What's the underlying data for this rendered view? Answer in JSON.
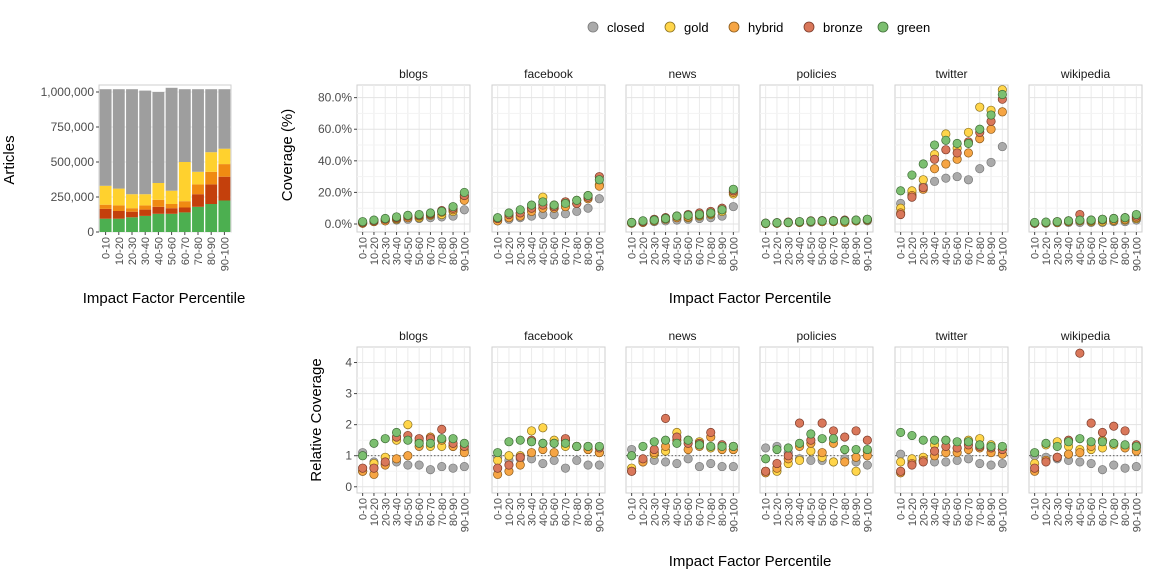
{
  "colors": {
    "closed": "#aaaaaa",
    "gold": "#ffd54a",
    "hybrid": "#f6a544",
    "bronze": "#d9775a",
    "green": "#7cbf70",
    "bar_closed": "#9e9e9e",
    "bar_gold": "#ffd12e",
    "bar_hybrid": "#f08a12",
    "bar_bronze": "#c4400c",
    "bar_green": "#4caf50"
  },
  "chart_data": [
    {
      "type": "bar",
      "stacked": true,
      "ylabel": "Articles",
      "xlabel": "Impact Factor Percentile",
      "ylim": [
        0,
        1050000
      ],
      "yticks": [
        "0",
        "250,000",
        "500,000",
        "750,000",
        "1,000,000"
      ],
      "categories": [
        "0-10",
        "10-20",
        "20-30",
        "30-40",
        "40-50",
        "50-60",
        "60-70",
        "70-80",
        "80-90",
        "90-100"
      ],
      "series": [
        {
          "name": "green",
          "values": [
            95000,
            95000,
            105000,
            115000,
            130000,
            130000,
            140000,
            180000,
            200000,
            225000
          ]
        },
        {
          "name": "bronze",
          "values": [
            70000,
            55000,
            40000,
            45000,
            50000,
            40000,
            35000,
            90000,
            140000,
            170000
          ]
        },
        {
          "name": "hybrid",
          "values": [
            30000,
            40000,
            25000,
            30000,
            50000,
            30000,
            45000,
            70000,
            90000,
            90000
          ]
        },
        {
          "name": "gold",
          "values": [
            135000,
            120000,
            100000,
            80000,
            120000,
            95000,
            280000,
            90000,
            140000,
            110000
          ]
        },
        {
          "name": "closed",
          "values": [
            690000,
            710000,
            750000,
            740000,
            650000,
            735000,
            520000,
            590000,
            450000,
            425000
          ]
        }
      ]
    },
    {
      "type": "scatter",
      "facets": [
        "blogs",
        "facebook",
        "news",
        "policies",
        "twitter",
        "wikipedia"
      ],
      "ylabel": "Coverage (%)",
      "xlabel": "Impact Factor Percentile",
      "ylim": [
        0,
        88
      ],
      "yticks": [
        "0.0%",
        "20.0%",
        "40.0%",
        "60.0%",
        "80.0%"
      ],
      "categories": [
        "0-10",
        "10-20",
        "20-30",
        "30-40",
        "40-50",
        "50-60",
        "60-70",
        "70-80",
        "80-90",
        "90-100"
      ],
      "legend": [
        "closed",
        "gold",
        "hybrid",
        "bronze",
        "green"
      ],
      "legend_position": "top",
      "series": {
        "blogs": {
          "closed": [
            1.0,
            1.5,
            2.0,
            2.5,
            3.0,
            3.5,
            4.0,
            4.5,
            5.0,
            9.0
          ],
          "gold": [
            0.5,
            2.0,
            2.5,
            3.0,
            4.5,
            4.0,
            5.5,
            6.0,
            8.0,
            17.0
          ],
          "hybrid": [
            0.5,
            1.5,
            2.0,
            3.5,
            4.0,
            5.0,
            6.0,
            7.5,
            9.0,
            15.0
          ],
          "bronze": [
            1.0,
            2.0,
            3.0,
            4.0,
            5.0,
            5.5,
            6.5,
            8.5,
            10.0,
            18.0
          ],
          "green": [
            1.5,
            2.5,
            3.5,
            4.5,
            5.5,
            6.0,
            7.0,
            8.0,
            11.0,
            20.0
          ]
        },
        "facebook": {
          "closed": [
            2.0,
            3.0,
            4.0,
            5.0,
            6.0,
            6.0,
            6.5,
            8.0,
            10.0,
            16.0
          ],
          "gold": [
            3.0,
            5.0,
            7.0,
            10.0,
            17.0,
            12.0,
            14.0,
            15.0,
            18.0,
            25.0
          ],
          "hybrid": [
            2.0,
            4.0,
            5.0,
            8.0,
            10.0,
            10.0,
            11.0,
            13.0,
            16.0,
            24.0
          ],
          "bronze": [
            3.5,
            6.0,
            7.0,
            10.0,
            12.0,
            11.0,
            14.0,
            13.0,
            17.0,
            30.0
          ],
          "green": [
            4.0,
            7.0,
            9.0,
            12.0,
            14.0,
            12.0,
            13.0,
            15.0,
            18.0,
            28.0
          ]
        },
        "news": {
          "closed": [
            0.5,
            1.0,
            1.5,
            2.0,
            2.5,
            3.0,
            3.5,
            4.0,
            5.0,
            11.0
          ],
          "gold": [
            1.0,
            1.5,
            2.0,
            4.0,
            5.0,
            4.0,
            5.0,
            6.0,
            8.0,
            19.0
          ],
          "hybrid": [
            0.5,
            1.0,
            2.0,
            3.0,
            4.0,
            4.5,
            5.5,
            6.5,
            9.0,
            20.0
          ],
          "bronze": [
            1.0,
            1.5,
            3.0,
            4.0,
            5.0,
            6.0,
            7.0,
            8.0,
            10.0,
            21.0
          ],
          "green": [
            1.0,
            2.0,
            2.5,
            3.5,
            5.0,
            5.5,
            6.0,
            7.0,
            9.0,
            22.0
          ]
        },
        "policies": {
          "closed": [
            0.5,
            0.5,
            1.0,
            1.0,
            1.0,
            1.5,
            1.5,
            1.5,
            2.0,
            2.0
          ],
          "gold": [
            0.3,
            0.5,
            0.8,
            1.0,
            1.5,
            1.5,
            1.5,
            1.0,
            2.0,
            2.5
          ],
          "hybrid": [
            0.3,
            0.5,
            1.0,
            1.2,
            1.5,
            1.5,
            1.8,
            1.5,
            2.0,
            2.5
          ],
          "bronze": [
            0.5,
            0.8,
            1.2,
            1.5,
            2.0,
            2.2,
            2.2,
            2.5,
            2.5,
            3.0
          ],
          "green": [
            0.5,
            0.8,
            1.0,
            1.5,
            1.8,
            2.0,
            2.0,
            2.0,
            2.5,
            3.0
          ]
        },
        "twitter": {
          "closed": [
            13.0,
            19.0,
            24.0,
            27.0,
            29.0,
            30.0,
            28.0,
            35.0,
            39.0,
            49.0
          ],
          "gold": [
            10.0,
            21.0,
            28.0,
            44.0,
            57.0,
            48.0,
            58.0,
            74.0,
            72.0,
            85.0
          ],
          "hybrid": [
            7.0,
            18.0,
            22.0,
            35.0,
            38.0,
            41.0,
            45.0,
            54.0,
            60.0,
            71.0
          ],
          "bronze": [
            6.0,
            17.0,
            23.0,
            41.0,
            47.0,
            45.0,
            52.0,
            58.0,
            65.0,
            79.0
          ],
          "green": [
            21.0,
            31.0,
            38.0,
            50.0,
            53.0,
            51.0,
            51.0,
            60.0,
            69.0,
            82.0
          ]
        },
        "wikipedia": {
          "closed": [
            0.5,
            0.5,
            0.8,
            1.0,
            1.0,
            1.0,
            1.0,
            1.5,
            1.5,
            2.5
          ],
          "gold": [
            0.5,
            0.8,
            1.0,
            1.5,
            2.0,
            1.5,
            1.5,
            2.0,
            2.5,
            3.5
          ],
          "hybrid": [
            0.5,
            0.8,
            1.0,
            1.5,
            2.0,
            2.0,
            2.5,
            2.5,
            3.0,
            4.0
          ],
          "bronze": [
            0.5,
            1.0,
            1.5,
            2.0,
            6.0,
            2.5,
            3.0,
            3.5,
            4.0,
            5.0
          ],
          "green": [
            1.0,
            1.2,
            1.5,
            2.0,
            2.5,
            2.5,
            3.0,
            3.5,
            4.0,
            6.0
          ]
        }
      }
    },
    {
      "type": "scatter",
      "facets": [
        "blogs",
        "facebook",
        "news",
        "policies",
        "twitter",
        "wikipedia"
      ],
      "ylabel": "Relative Coverage",
      "xlabel": "Impact Factor Percentile",
      "ylim": [
        -0.2,
        4.5
      ],
      "yticks": [
        "0",
        "1",
        "2",
        "3",
        "4"
      ],
      "reference_line": 1,
      "categories": [
        "0-10",
        "10-20",
        "20-30",
        "30-40",
        "40-50",
        "50-60",
        "60-70",
        "70-80",
        "80-90",
        "90-100"
      ],
      "series": {
        "blogs": {
          "closed": [
            1.1,
            0.8,
            0.75,
            0.8,
            0.7,
            0.7,
            0.55,
            0.65,
            0.6,
            0.65
          ],
          "gold": [
            0.5,
            0.75,
            0.95,
            1.5,
            2.0,
            1.45,
            1.3,
            1.3,
            1.3,
            1.2
          ],
          "hybrid": [
            0.5,
            0.4,
            0.7,
            0.9,
            1.0,
            1.3,
            1.6,
            1.5,
            1.3,
            1.1
          ],
          "bronze": [
            0.6,
            0.6,
            0.8,
            1.6,
            1.65,
            1.55,
            1.55,
            1.85,
            1.4,
            1.3
          ],
          "green": [
            1.0,
            1.4,
            1.55,
            1.75,
            1.5,
            1.4,
            1.4,
            1.55,
            1.55,
            1.4
          ]
        },
        "facebook": {
          "closed": [
            0.95,
            0.85,
            0.9,
            0.9,
            0.75,
            0.85,
            0.6,
            0.85,
            0.7,
            0.7
          ],
          "gold": [
            0.85,
            1.0,
            1.0,
            1.8,
            1.9,
            1.5,
            1.3,
            1.3,
            1.2,
            1.1
          ],
          "hybrid": [
            0.4,
            0.5,
            0.7,
            1.1,
            1.2,
            1.1,
            1.5,
            1.3,
            1.2,
            1.1
          ],
          "bronze": [
            0.6,
            0.7,
            0.95,
            1.5,
            1.4,
            1.4,
            1.55,
            1.3,
            1.3,
            1.25
          ],
          "green": [
            1.1,
            1.45,
            1.5,
            1.45,
            1.4,
            1.4,
            1.4,
            1.3,
            1.3,
            1.3
          ]
        },
        "news": {
          "closed": [
            1.2,
            0.8,
            0.85,
            0.8,
            0.75,
            0.9,
            0.65,
            0.75,
            0.65,
            0.65
          ],
          "gold": [
            0.6,
            0.85,
            1.05,
            1.15,
            1.75,
            1.5,
            1.45,
            1.25,
            1.25,
            1.2
          ],
          "hybrid": [
            0.5,
            0.8,
            1.1,
            1.3,
            1.5,
            1.2,
            1.3,
            1.6,
            1.2,
            1.2
          ],
          "bronze": [
            0.5,
            0.9,
            1.2,
            2.2,
            1.6,
            1.4,
            1.4,
            1.75,
            1.35,
            1.3
          ],
          "green": [
            1.0,
            1.3,
            1.45,
            1.5,
            1.4,
            1.5,
            1.35,
            1.3,
            1.3,
            1.3
          ]
        },
        "policies": {
          "closed": [
            1.25,
            1.3,
            1.1,
            0.9,
            0.85,
            0.85,
            0.8,
            0.9,
            0.8,
            0.7
          ],
          "gold": [
            0.5,
            0.5,
            0.75,
            0.85,
            1.15,
            0.95,
            0.8,
            1.2,
            0.5,
            1.15
          ],
          "hybrid": [
            0.45,
            0.6,
            0.9,
            1.3,
            1.4,
            1.1,
            1.4,
            0.8,
            0.95,
            1.0
          ],
          "bronze": [
            0.5,
            0.75,
            1.0,
            2.05,
            1.5,
            2.05,
            1.8,
            1.6,
            1.8,
            1.5
          ],
          "green": [
            0.9,
            1.2,
            1.25,
            1.4,
            1.7,
            1.55,
            1.55,
            1.2,
            1.2,
            1.2
          ]
        },
        "twitter": {
          "closed": [
            1.05,
            0.85,
            0.85,
            0.8,
            0.8,
            0.85,
            0.9,
            0.75,
            0.7,
            0.75
          ],
          "gold": [
            0.8,
            0.9,
            0.95,
            1.35,
            1.5,
            1.25,
            1.5,
            1.55,
            1.35,
            1.2
          ],
          "hybrid": [
            0.45,
            0.75,
            0.85,
            1.0,
            1.1,
            1.1,
            1.2,
            1.25,
            1.1,
            1.05
          ],
          "bronze": [
            0.5,
            0.7,
            0.8,
            1.15,
            1.3,
            1.25,
            1.35,
            1.3,
            1.25,
            1.2
          ],
          "green": [
            1.75,
            1.65,
            1.5,
            1.5,
            1.5,
            1.45,
            1.45,
            1.35,
            1.3,
            1.3
          ]
        },
        "wikipedia": {
          "closed": [
            1.0,
            0.95,
            0.9,
            0.85,
            0.8,
            0.75,
            0.55,
            0.7,
            0.6,
            0.65
          ],
          "gold": [
            0.75,
            1.35,
            1.45,
            1.3,
            1.2,
            1.2,
            1.25,
            1.35,
            1.3,
            1.25
          ],
          "hybrid": [
            0.5,
            0.85,
            0.95,
            1.05,
            1.1,
            1.3,
            1.5,
            1.4,
            1.25,
            1.15
          ],
          "bronze": [
            0.6,
            0.8,
            0.95,
            1.5,
            4.3,
            2.05,
            1.75,
            1.95,
            1.8,
            1.35
          ],
          "green": [
            1.1,
            1.4,
            1.3,
            1.45,
            1.55,
            1.45,
            1.45,
            1.4,
            1.35,
            1.3
          ]
        }
      }
    }
  ]
}
